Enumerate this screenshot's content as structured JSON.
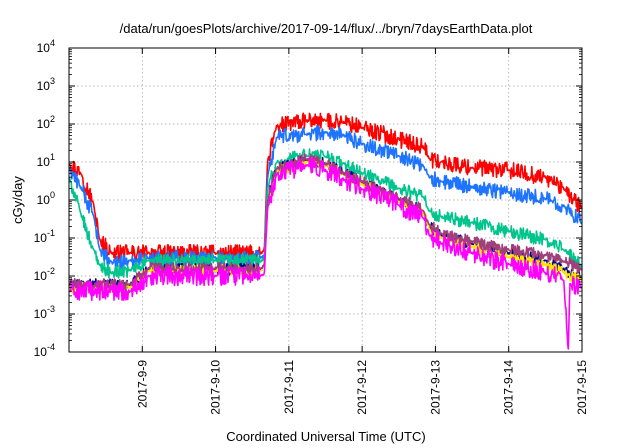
{
  "chart_data": {
    "type": "line",
    "title": "/data/run/goesPlots/archive/2017-09-14/flux/../bryn/7daysEarthData.plot",
    "xlabel": "Coordinated Universal Time (UTC)",
    "ylabel": "cGy/day",
    "y_scale": "log",
    "ylim": [
      0.0001,
      10000
    ],
    "y_ticks": [
      {
        "value": 0.0001,
        "base": "10",
        "exp": "-4"
      },
      {
        "value": 0.001,
        "base": "10",
        "exp": "-3"
      },
      {
        "value": 0.01,
        "base": "10",
        "exp": "-2"
      },
      {
        "value": 0.1,
        "base": "10",
        "exp": "-1"
      },
      {
        "value": 1,
        "base": "10",
        "exp": "0"
      },
      {
        "value": 10,
        "base": "10",
        "exp": "1"
      },
      {
        "value": 100,
        "base": "10",
        "exp": "2"
      },
      {
        "value": 1000,
        "base": "10",
        "exp": "3"
      },
      {
        "value": 10000,
        "base": "10",
        "exp": "4"
      }
    ],
    "xlim": [
      "2017-09-08 00:00",
      "2017-09-15 00:00"
    ],
    "x_ticks": [
      "2017-9-9",
      "2017-9-10",
      "2017-9-11",
      "2017-9-12",
      "2017-9-13",
      "2017-9-14",
      "2017-9-15"
    ],
    "grid": true,
    "legend": "none",
    "series": [
      {
        "color": "#ff0000",
        "noise": 0.22,
        "points": [
          [
            "2017-09-08 00:00",
            9
          ],
          [
            "2017-09-08 04:00",
            5
          ],
          [
            "2017-09-08 08:00",
            0.8
          ],
          [
            "2017-09-08 10:00",
            0.09
          ],
          [
            "2017-09-08 14:00",
            0.04
          ],
          [
            "2017-09-08 20:00",
            0.04
          ],
          [
            "2017-09-09 02:00",
            0.04
          ],
          [
            "2017-09-10 00:00",
            0.04
          ],
          [
            "2017-09-10 15:00",
            0.04
          ],
          [
            "2017-09-10 16:00",
            0.05
          ],
          [
            "2017-09-10 17:00",
            10
          ],
          [
            "2017-09-10 20:00",
            90
          ],
          [
            "2017-09-11 06:00",
            120
          ],
          [
            "2017-09-11 12:00",
            125
          ],
          [
            "2017-09-11 18:00",
            110
          ],
          [
            "2017-09-12 00:00",
            80
          ],
          [
            "2017-09-12 12:00",
            40
          ],
          [
            "2017-09-12 20:00",
            25
          ],
          [
            "2017-09-12 22:00",
            12
          ],
          [
            "2017-09-13 02:00",
            10
          ],
          [
            "2017-09-13 12:00",
            7
          ],
          [
            "2017-09-14 00:00",
            6
          ],
          [
            "2017-09-14 12:00",
            4
          ],
          [
            "2017-09-14 18:00",
            2
          ],
          [
            "2017-09-15 00:00",
            0.6
          ]
        ]
      },
      {
        "color": "#1e73ff",
        "noise": 0.2,
        "points": [
          [
            "2017-09-08 00:00",
            7
          ],
          [
            "2017-09-08 04:00",
            2
          ],
          [
            "2017-09-08 08:00",
            0.4
          ],
          [
            "2017-09-08 10:00",
            0.05
          ],
          [
            "2017-09-08 14:00",
            0.022
          ],
          [
            "2017-09-08 20:00",
            0.025
          ],
          [
            "2017-09-09 02:00",
            0.03
          ],
          [
            "2017-09-10 00:00",
            0.03
          ],
          [
            "2017-09-10 15:00",
            0.03
          ],
          [
            "2017-09-10 16:00",
            0.035
          ],
          [
            "2017-09-10 17:00",
            4
          ],
          [
            "2017-09-10 20:00",
            45
          ],
          [
            "2017-09-11 06:00",
            55
          ],
          [
            "2017-09-11 12:00",
            60
          ],
          [
            "2017-09-11 18:00",
            50
          ],
          [
            "2017-09-12 00:00",
            30
          ],
          [
            "2017-09-12 12:00",
            15
          ],
          [
            "2017-09-12 20:00",
            8
          ],
          [
            "2017-09-12 22:00",
            4
          ],
          [
            "2017-09-13 02:00",
            3
          ],
          [
            "2017-09-13 12:00",
            2.2
          ],
          [
            "2017-09-14 00:00",
            1.6
          ],
          [
            "2017-09-14 12:00",
            1.1
          ],
          [
            "2017-09-14 18:00",
            0.7
          ],
          [
            "2017-09-15 00:00",
            0.25
          ]
        ]
      },
      {
        "color": "#00c48c",
        "noise": 0.18,
        "points": [
          [
            "2017-09-08 00:00",
            4
          ],
          [
            "2017-09-08 04:00",
            0.4
          ],
          [
            "2017-09-08 08:00",
            0.05
          ],
          [
            "2017-09-08 10:00",
            0.02
          ],
          [
            "2017-09-08 14:00",
            0.012
          ],
          [
            "2017-09-08 20:00",
            0.014
          ],
          [
            "2017-09-09 02:00",
            0.025
          ],
          [
            "2017-09-10 00:00",
            0.025
          ],
          [
            "2017-09-10 15:00",
            0.025
          ],
          [
            "2017-09-10 16:00",
            0.03
          ],
          [
            "2017-09-10 17:00",
            2
          ],
          [
            "2017-09-10 20:00",
            10
          ],
          [
            "2017-09-11 06:00",
            15
          ],
          [
            "2017-09-11 12:00",
            14
          ],
          [
            "2017-09-11 18:00",
            9
          ],
          [
            "2017-09-12 00:00",
            5
          ],
          [
            "2017-09-12 12:00",
            2
          ],
          [
            "2017-09-12 20:00",
            1.2
          ],
          [
            "2017-09-12 22:00",
            0.5
          ],
          [
            "2017-09-13 02:00",
            0.35
          ],
          [
            "2017-09-13 12:00",
            0.25
          ],
          [
            "2017-09-14 00:00",
            0.15
          ],
          [
            "2017-09-14 12:00",
            0.09
          ],
          [
            "2017-09-14 18:00",
            0.05
          ],
          [
            "2017-09-15 00:00",
            0.018
          ]
        ]
      },
      {
        "color": "#000099",
        "noise": 0.15,
        "points": [
          [
            "2017-09-08 00:00",
            0.006
          ],
          [
            "2017-09-08 20:00",
            0.006
          ],
          [
            "2017-09-09 02:00",
            0.015
          ],
          [
            "2017-09-10 00:00",
            0.015
          ],
          [
            "2017-09-10 15:00",
            0.015
          ],
          [
            "2017-09-10 16:00",
            0.02
          ],
          [
            "2017-09-10 17:00",
            1
          ],
          [
            "2017-09-10 20:00",
            7
          ],
          [
            "2017-09-11 06:00",
            11
          ],
          [
            "2017-09-11 12:00",
            9
          ],
          [
            "2017-09-11 18:00",
            5
          ],
          [
            "2017-09-12 00:00",
            3
          ],
          [
            "2017-09-12 12:00",
            1
          ],
          [
            "2017-09-12 20:00",
            0.5
          ],
          [
            "2017-09-12 22:00",
            0.2
          ],
          [
            "2017-09-13 02:00",
            0.12
          ],
          [
            "2017-09-13 12:00",
            0.07
          ],
          [
            "2017-09-14 00:00",
            0.04
          ],
          [
            "2017-09-14 12:00",
            0.025
          ],
          [
            "2017-09-14 18:00",
            0.015
          ],
          [
            "2017-09-15 00:00",
            0.009
          ]
        ]
      },
      {
        "color": "#ffe600",
        "noise": 0.15,
        "points": [
          [
            "2017-09-08 00:00",
            0.005
          ],
          [
            "2017-09-08 20:00",
            0.005
          ],
          [
            "2017-09-09 02:00",
            0.014
          ],
          [
            "2017-09-10 00:00",
            0.014
          ],
          [
            "2017-09-10 15:00",
            0.014
          ],
          [
            "2017-09-10 16:00",
            0.02
          ],
          [
            "2017-09-10 17:00",
            1
          ],
          [
            "2017-09-10 20:00",
            6
          ],
          [
            "2017-09-11 06:00",
            10
          ],
          [
            "2017-09-11 12:00",
            8
          ],
          [
            "2017-09-11 18:00",
            4.5
          ],
          [
            "2017-09-12 00:00",
            2.6
          ],
          [
            "2017-09-12 12:00",
            0.9
          ],
          [
            "2017-09-12 20:00",
            0.45
          ],
          [
            "2017-09-12 22:00",
            0.18
          ],
          [
            "2017-09-13 02:00",
            0.1
          ],
          [
            "2017-09-13 12:00",
            0.06
          ],
          [
            "2017-09-14 00:00",
            0.03
          ],
          [
            "2017-09-14 12:00",
            0.02
          ],
          [
            "2017-09-14 18:00",
            0.012
          ],
          [
            "2017-09-15 00:00",
            0.008
          ]
        ]
      },
      {
        "color": "#a0407a",
        "noise": 0.15,
        "points": [
          [
            "2017-09-08 00:00",
            0.006
          ],
          [
            "2017-09-08 20:00",
            0.006
          ],
          [
            "2017-09-09 02:00",
            0.016
          ],
          [
            "2017-09-10 00:00",
            0.016
          ],
          [
            "2017-09-10 15:00",
            0.016
          ],
          [
            "2017-09-10 16:00",
            0.02
          ],
          [
            "2017-09-10 17:00",
            1
          ],
          [
            "2017-09-10 20:00",
            7
          ],
          [
            "2017-09-11 06:00",
            12
          ],
          [
            "2017-09-11 12:00",
            9
          ],
          [
            "2017-09-11 18:00",
            5
          ],
          [
            "2017-09-12 00:00",
            3
          ],
          [
            "2017-09-12 12:00",
            1.1
          ],
          [
            "2017-09-12 20:00",
            0.55
          ],
          [
            "2017-09-12 22:00",
            0.22
          ],
          [
            "2017-09-13 02:00",
            0.13
          ],
          [
            "2017-09-13 12:00",
            0.08
          ],
          [
            "2017-09-14 00:00",
            0.05
          ],
          [
            "2017-09-14 12:00",
            0.035
          ],
          [
            "2017-09-14 18:00",
            0.025
          ],
          [
            "2017-09-15 00:00",
            0.015
          ]
        ]
      },
      {
        "color": "#ff00ff",
        "noise": 0.25,
        "points": [
          [
            "2017-09-08 00:00",
            0.004
          ],
          [
            "2017-09-08 20:00",
            0.004
          ],
          [
            "2017-09-09 02:00",
            0.01
          ],
          [
            "2017-09-10 00:00",
            0.01
          ],
          [
            "2017-09-10 15:00",
            0.01
          ],
          [
            "2017-09-10 16:00",
            0.012
          ],
          [
            "2017-09-10 17:00",
            0.6
          ],
          [
            "2017-09-10 20:00",
            5
          ],
          [
            "2017-09-11 06:00",
            8
          ],
          [
            "2017-09-11 12:00",
            6
          ],
          [
            "2017-09-11 18:00",
            3.5
          ],
          [
            "2017-09-12 00:00",
            2
          ],
          [
            "2017-09-12 12:00",
            0.7
          ],
          [
            "2017-09-12 20:00",
            0.35
          ],
          [
            "2017-09-12 22:00",
            0.12
          ],
          [
            "2017-09-13 02:00",
            0.07
          ],
          [
            "2017-09-13 12:00",
            0.04
          ],
          [
            "2017-09-14 00:00",
            0.02
          ],
          [
            "2017-09-14 12:00",
            0.012
          ],
          [
            "2017-09-14 18:00",
            0.008
          ],
          [
            "2017-09-14 19:30",
            0.0001
          ],
          [
            "2017-09-14 20:00",
            0.006
          ],
          [
            "2017-09-15 00:00",
            0.005
          ]
        ]
      }
    ]
  }
}
